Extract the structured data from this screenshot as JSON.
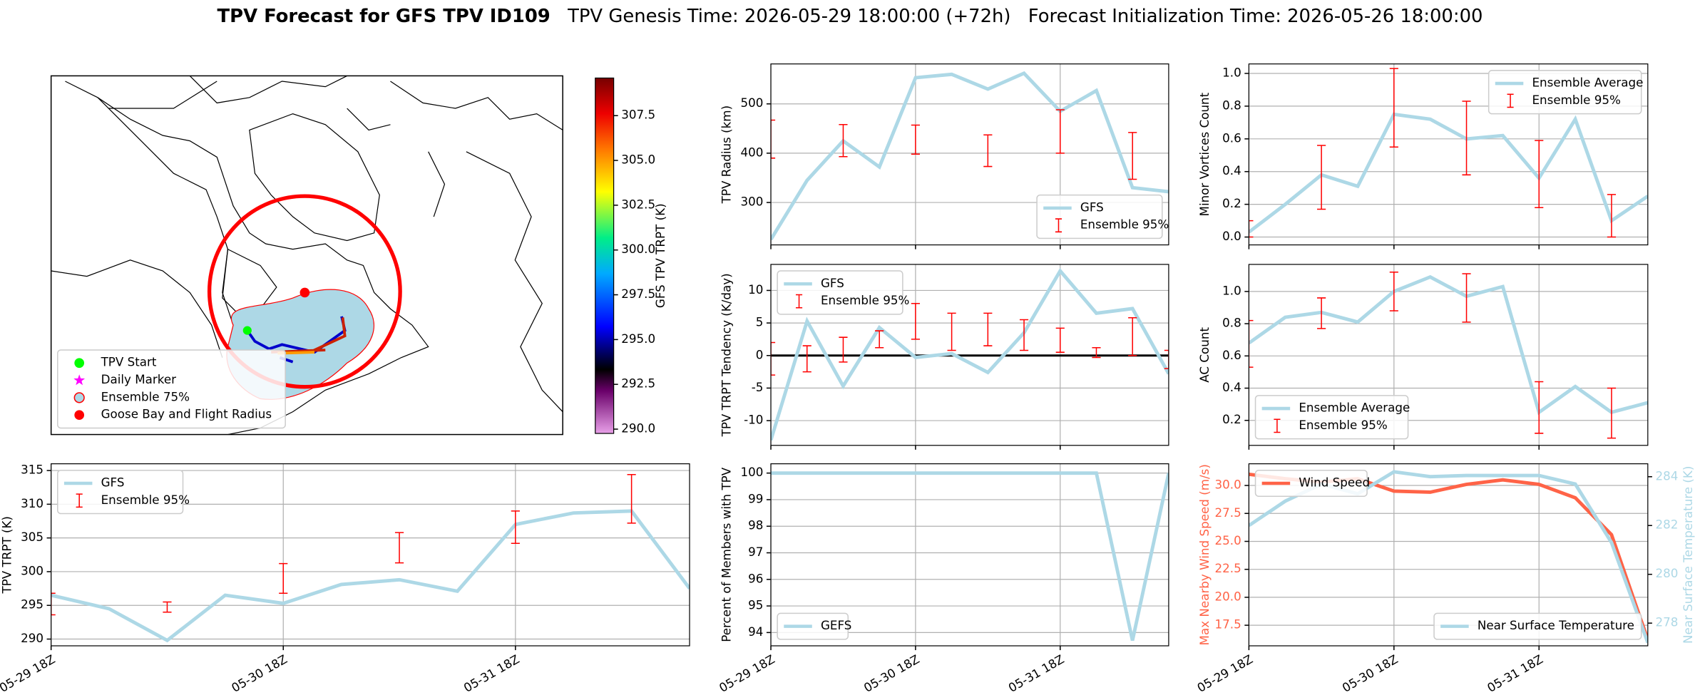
{
  "figure": {
    "title": "TPV Forecast for GFS TPV ID109",
    "genesis": "TPV Genesis Time: 2026-05-29 18:00:00 (+72h)",
    "init": "Forecast Initialization Time: 2026-05-26 18:00:00"
  },
  "chart_data": [
    {
      "type": "map",
      "colorbar": {
        "label": "GFS TPV TRPT (K)",
        "lim": [
          289.76,
          309.6
        ],
        "ticks": [
          {
            "value": 290,
            "label": "290.0"
          },
          {
            "value": 292.5,
            "label": "292.5"
          },
          {
            "value": 295,
            "label": "295.0"
          },
          {
            "value": 297.5,
            "label": "297.5"
          },
          {
            "value": 300,
            "label": "300.0"
          },
          {
            "value": 302.5,
            "label": "302.5"
          },
          {
            "value": 305,
            "label": "305.0"
          },
          {
            "value": 307.5,
            "label": "307.5"
          }
        ]
      },
      "legend": "lower left",
      "legend_entries": [
        {
          "label": "TPV Start",
          "color": "#00ff00",
          "marker": "circle"
        },
        {
          "label": "Daily Marker",
          "color": "#ff00ff",
          "marker": "star"
        },
        {
          "label": "Ensemble 75%",
          "color": "#add8e6",
          "edge": "#ff0000",
          "marker": "circle"
        },
        {
          "label": "Goose Bay and Flight Radius",
          "color": "#ff0000",
          "marker": "circle"
        }
      ]
    },
    {
      "type": "line",
      "ylabel": "TPV TRPT (K)",
      "grid": true,
      "legend": "upper left",
      "categories": [
        "05-29 18Z",
        null,
        null,
        null,
        "05-30 18Z",
        null,
        null,
        null,
        "05-31 18Z",
        null,
        null,
        null
      ],
      "ylim": [
        289,
        316
      ],
      "yticks": [
        290,
        295,
        300,
        305,
        310,
        315
      ],
      "series": [
        {
          "name": "GFS",
          "type": "line",
          "color": "#add8e6",
          "values": [
            296.5,
            294.5,
            289.8,
            296.5,
            295.3,
            298.1,
            298.8,
            297.1,
            307.0,
            308.7,
            309.0,
            297.5
          ]
        },
        {
          "name": "Ensemble 95%",
          "type": "errorbar",
          "color": "#ff0000",
          "low": [
            293.6,
            null,
            294.0,
            null,
            296.8,
            null,
            301.3,
            null,
            304.2,
            null,
            307.2,
            null
          ],
          "high": [
            296.8,
            null,
            295.5,
            null,
            301.2,
            null,
            305.8,
            null,
            309.0,
            null,
            314.4,
            null
          ]
        }
      ]
    },
    {
      "type": "line",
      "ylabel": "TPV Radius (km)",
      "grid": true,
      "legend": "lower right",
      "ylim": [
        214,
        581
      ],
      "yticks": [
        300,
        400,
        500
      ],
      "series": [
        {
          "name": "GFS",
          "type": "line",
          "color": "#add8e6",
          "values": [
            225,
            345,
            425,
            372,
            553,
            560,
            530,
            562,
            485,
            527,
            330,
            322
          ]
        },
        {
          "name": "Ensemble 95%",
          "type": "errorbar",
          "color": "#ff0000",
          "low": [
            390,
            null,
            393,
            null,
            398,
            null,
            373,
            null,
            400,
            null,
            347,
            null
          ],
          "high": [
            467,
            null,
            458,
            null,
            457,
            null,
            437,
            null,
            488,
            null,
            442,
            null
          ]
        }
      ]
    },
    {
      "type": "line",
      "ylabel": "TPV TRPT Tendency (K/day)",
      "grid": true,
      "legend": "upper left",
      "hline": 0,
      "ylim": [
        -13.8,
        14
      ],
      "yticks": [
        -10,
        -5,
        0,
        5,
        10
      ],
      "series": [
        {
          "name": "GFS",
          "type": "line",
          "color": "#add8e6",
          "values": [
            -13,
            5.3,
            -4.7,
            4.3,
            -0.3,
            0.3,
            -2.6,
            3.5,
            13,
            6.5,
            7.2,
            -2.8
          ]
        },
        {
          "name": "Ensemble 95%",
          "type": "errorbar",
          "color": "#ff0000",
          "low": [
            -3,
            -2.5,
            -1,
            1.2,
            2.5,
            0.8,
            1.5,
            0.8,
            0.5,
            -0.3,
            0,
            -2
          ],
          "high": [
            2,
            1.5,
            2.8,
            3.8,
            8,
            6.5,
            6.5,
            5.5,
            4.2,
            1.2,
            5.8,
            0.8
          ]
        }
      ]
    },
    {
      "type": "line",
      "ylabel": "Percent of Members with TPV",
      "grid": true,
      "legend": "lower left",
      "categories": [
        "05-29 18Z",
        null,
        null,
        null,
        "05-30 18Z",
        null,
        null,
        null,
        "05-31 18Z",
        null,
        null,
        null
      ],
      "ylim": [
        93.5,
        100.35
      ],
      "yticks": [
        94,
        95,
        96,
        97,
        98,
        99,
        100
      ],
      "series": [
        {
          "name": "GEFS",
          "type": "line",
          "color": "#add8e6",
          "values": [
            100,
            100,
            100,
            100,
            100,
            100,
            100,
            100,
            100,
            100,
            93.7,
            100
          ]
        }
      ]
    },
    {
      "type": "line",
      "ylabel": "Minor Vortices Count",
      "grid": true,
      "legend": "upper right",
      "ylim": [
        -0.048,
        1.058
      ],
      "yticks": [
        {
          "value": 0,
          "label": "0.0"
        },
        {
          "value": 0.2,
          "label": "0.2"
        },
        {
          "value": 0.4,
          "label": "0.4"
        },
        {
          "value": 0.6,
          "label": "0.6"
        },
        {
          "value": 0.8,
          "label": "0.8"
        },
        {
          "value": 1,
          "label": "1.0"
        }
      ],
      "series": [
        {
          "name": "Ensemble Average",
          "type": "line",
          "color": "#add8e6",
          "values": [
            0.03,
            0.2,
            0.38,
            0.31,
            0.75,
            0.72,
            0.6,
            0.62,
            0.36,
            0.72,
            0.1,
            0.25
          ]
        },
        {
          "name": "Ensemble 95%",
          "type": "errorbar",
          "color": "#ff0000",
          "low": [
            0,
            null,
            0.17,
            null,
            0.55,
            null,
            0.38,
            null,
            0.18,
            null,
            0,
            null
          ],
          "high": [
            0.1,
            null,
            0.56,
            null,
            1.03,
            null,
            0.83,
            null,
            0.59,
            null,
            0.26,
            null
          ]
        }
      ]
    },
    {
      "type": "line",
      "ylabel": "AC Count",
      "grid": true,
      "legend": "lower left",
      "ylim": [
        0.045,
        1.168
      ],
      "yticks": [
        0.2,
        0.4,
        0.6,
        0.8,
        {
          "value": 1,
          "label": "1.0"
        }
      ],
      "series": [
        {
          "name": "Ensemble Average",
          "type": "line",
          "color": "#add8e6",
          "values": [
            0.68,
            0.84,
            0.87,
            0.81,
            1.0,
            1.09,
            0.97,
            1.03,
            0.25,
            0.41,
            0.25,
            0.31
          ]
        },
        {
          "name": "Ensemble 95%",
          "type": "errorbar",
          "color": "#ff0000",
          "low": [
            0.53,
            null,
            0.77,
            null,
            0.88,
            null,
            0.81,
            null,
            0.12,
            null,
            0.09,
            null
          ],
          "high": [
            0.82,
            null,
            0.96,
            null,
            1.12,
            null,
            1.11,
            null,
            0.44,
            null,
            0.4,
            null
          ]
        }
      ]
    },
    {
      "type": "line",
      "ylabel": "Max Nearby Wind Speed (m/s)",
      "y2label": "Near Surface Temperature (K)",
      "grid": true,
      "legend": "upper left",
      "legend2": "lower right",
      "categories": [
        "05-29 18Z",
        null,
        null,
        null,
        "05-30 18Z",
        null,
        null,
        null,
        "05-31 18Z",
        null,
        null,
        null
      ],
      "ylim": [
        15.66,
        31.94
      ],
      "yticks": [
        {
          "value": 17.5,
          "label": "17.5"
        },
        {
          "value": 20,
          "label": "20.0"
        },
        {
          "value": 22.5,
          "label": "22.5"
        },
        {
          "value": 25,
          "label": "25.0"
        },
        {
          "value": 27.5,
          "label": "27.5"
        },
        {
          "value": 30,
          "label": "30.0"
        }
      ],
      "y2lim": [
        277.07,
        284.53
      ],
      "y2ticks": [
        278,
        280,
        282,
        284
      ],
      "series": [
        {
          "name": "Wind Speed",
          "type": "line",
          "color": "#ff6347",
          "values": [
            31.0,
            30.6,
            30.3,
            30.6,
            29.5,
            29.4,
            30.1,
            30.5,
            30.1,
            28.9,
            25.6,
            16.2
          ]
        },
        {
          "name": "Near Surface Temperature",
          "type": "line",
          "axis": "y2",
          "color": "#add8e6",
          "values": [
            282.0,
            283.0,
            283.7,
            283.3,
            284.2,
            284.0,
            284.05,
            284.05,
            284.05,
            283.7,
            281.3,
            277.2
          ]
        }
      ]
    }
  ]
}
